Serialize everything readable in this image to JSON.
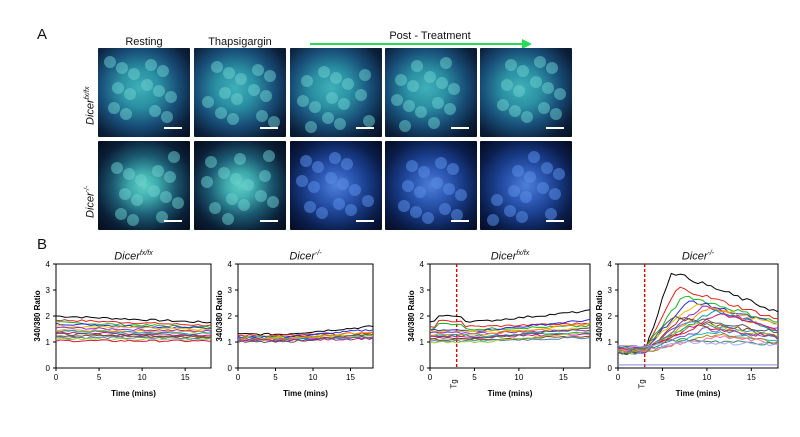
{
  "panel_a": {
    "letter": "A",
    "columns": [
      "Resting",
      "Thapsigargin"
    ],
    "post_treatment_label": "Post - Treatment",
    "arrow_color": "#22dd55",
    "rows": [
      {
        "label_main": "Dicer",
        "label_sup": "fx/fx"
      },
      {
        "label_main": "Dicer",
        "label_sup": "-/-"
      }
    ]
  },
  "panel_b": {
    "letter": "B",
    "tg_label": "Tg",
    "plots": [
      {
        "title_main": "Dicer",
        "title_sup": "fx/fx",
        "ylabel": "340/380 Ratio",
        "xlabel": "Time (mins)"
      },
      {
        "title_main": "Dicer",
        "title_sup": "-/-",
        "ylabel": "340/380 Ratio",
        "xlabel": "Time (mins)"
      },
      {
        "title_main": "Dicer",
        "title_sup": "fx/fx",
        "ylabel": "340/380 Ratio",
        "xlabel": "Time (mins)"
      },
      {
        "title_main": "Dicer",
        "title_sup": "-/-",
        "ylabel": "340/380 Ratio",
        "xlabel": "Time (mins)"
      }
    ]
  },
  "chart_data": [
    {
      "type": "line",
      "title": "Dicer fx/fx",
      "xlabel": "Time (mins)",
      "ylabel": "340/380 Ratio",
      "xlim": [
        0,
        18
      ],
      "ylim": [
        0,
        4
      ],
      "xticks": [
        0,
        5,
        10,
        15
      ],
      "yticks": [
        0,
        1,
        2,
        3,
        4
      ],
      "series_levels": [
        2.0,
        1.85,
        1.75,
        1.7,
        1.62,
        1.55,
        1.48,
        1.42,
        1.36,
        1.3,
        1.25,
        1.18,
        1.12,
        1.05
      ],
      "end_drop": 0.25
    },
    {
      "type": "line",
      "title": "Dicer -/-",
      "xlabel": "Time (mins)",
      "ylabel": "340/380 Ratio",
      "xlim": [
        0,
        18
      ],
      "ylim": [
        0,
        4
      ],
      "xticks": [
        0,
        5,
        10,
        15
      ],
      "yticks": [
        0,
        1,
        2,
        3,
        4
      ],
      "series_levels": [
        1.3,
        1.25,
        1.2,
        1.18,
        1.15,
        1.12,
        1.1,
        1.08,
        1.05,
        1.0
      ],
      "end_rise": 0.3
    },
    {
      "type": "line",
      "title": "Dicer fx/fx",
      "xlabel": "Time (mins)",
      "ylabel": "340/380 Ratio",
      "xlim": [
        0,
        18
      ],
      "ylim": [
        0,
        4
      ],
      "xticks": [
        0,
        5,
        10,
        15
      ],
      "yticks": [
        0,
        1,
        2,
        3,
        4
      ],
      "tg_time": 3,
      "series_levels": [
        1.8,
        1.6,
        1.5,
        1.45,
        1.4,
        1.35,
        1.3,
        1.25,
        1.2,
        1.15,
        1.1,
        1.05,
        1.0
      ],
      "end_rise": 0.4
    },
    {
      "type": "line",
      "title": "Dicer -/-",
      "xlabel": "Time (mins)",
      "ylabel": "340/380 Ratio",
      "xlim": [
        0,
        18
      ],
      "ylim": [
        0,
        4
      ],
      "xticks": [
        0,
        5,
        10,
        15
      ],
      "yticks": [
        0,
        1,
        2,
        3,
        4
      ],
      "tg_time": 3,
      "series_peaks": [
        3.7,
        3.1,
        2.8,
        2.6,
        2.5,
        2.4,
        2.3,
        2.2,
        2.1,
        2.0,
        1.9,
        1.8,
        1.7,
        1.6,
        1.5,
        1.4,
        1.3,
        1.2,
        1.1,
        1.0
      ],
      "baseline": 0.6
    }
  ],
  "series_colors": [
    "#000000",
    "#e0221e",
    "#1db31d",
    "#2a2ad6",
    "#e6b800",
    "#8a2be2",
    "#ff8c00",
    "#00a0a0",
    "#c71585",
    "#555555",
    "#8b4513",
    "#4682b4",
    "#9acd32",
    "#dc143c",
    "#6a5acd",
    "#20b2aa",
    "#b8860b",
    "#ff69b4",
    "#2e8b57",
    "#a9a9ff"
  ]
}
